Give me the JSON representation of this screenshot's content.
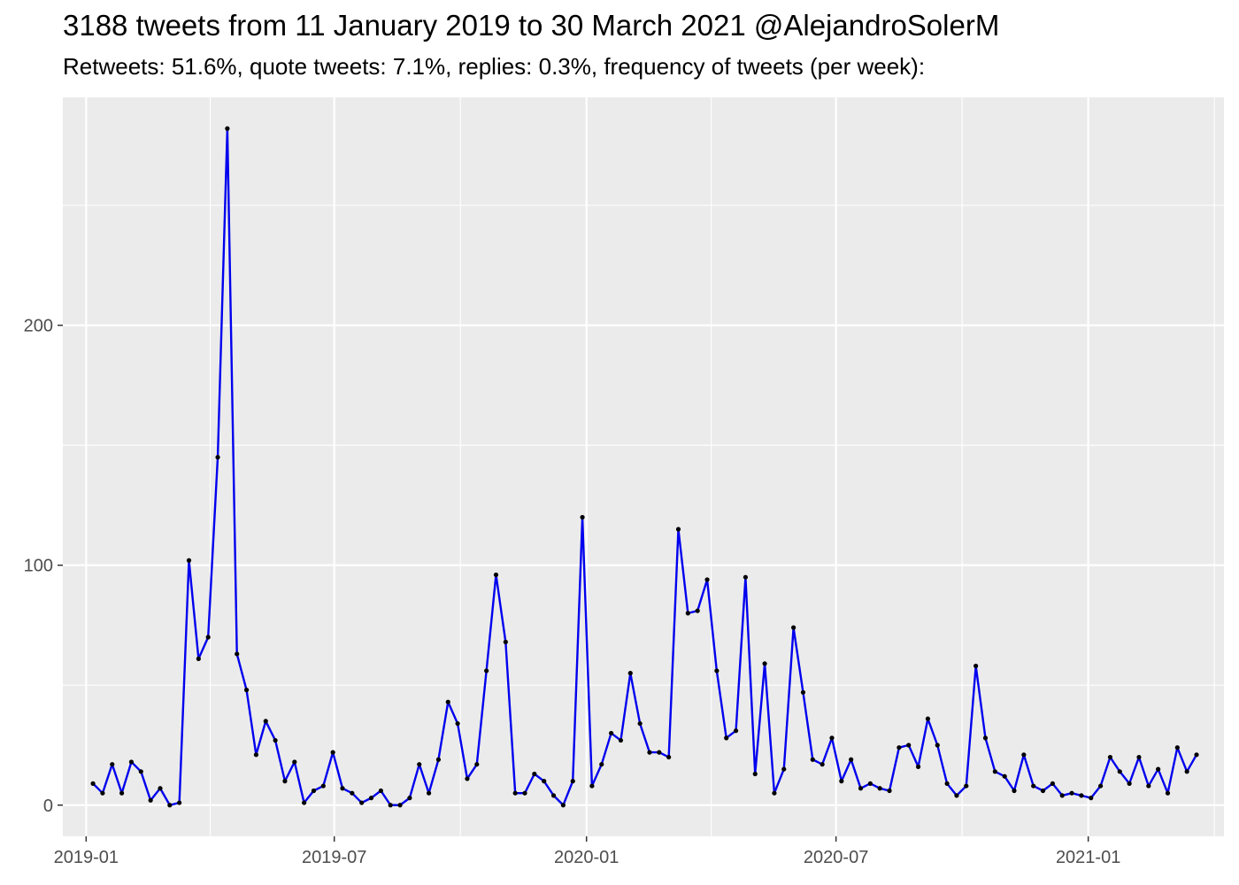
{
  "chart_data": {
    "type": "line",
    "title": "3188 tweets from 11 January 2019 to 30 March 2021 @AlejandroSolerM",
    "subtitle": "Retweets: 51.6%, quote tweets: 7.1%, replies: 0.3%, frequency of tweets (per week):",
    "xlabel": "",
    "ylabel": "",
    "x_start": "2019-01-06",
    "x_step_days": 7,
    "values": [
      9,
      5,
      17,
      5,
      18,
      14,
      2,
      7,
      0,
      1,
      102,
      61,
      70,
      145,
      282,
      63,
      48,
      21,
      35,
      27,
      10,
      18,
      1,
      6,
      8,
      22,
      7,
      5,
      1,
      3,
      6,
      0,
      0,
      3,
      17,
      5,
      19,
      43,
      34,
      11,
      17,
      56,
      96,
      68,
      5,
      5,
      13,
      10,
      4,
      0,
      10,
      120,
      8,
      17,
      30,
      27,
      55,
      34,
      22,
      22,
      20,
      115,
      80,
      81,
      94,
      56,
      28,
      31,
      95,
      13,
      59,
      5,
      15,
      74,
      47,
      19,
      17,
      28,
      10,
      19,
      7,
      9,
      7,
      6,
      24,
      25,
      16,
      36,
      25,
      9,
      4,
      8,
      58,
      28,
      14,
      12,
      6,
      21,
      8,
      6,
      9,
      4,
      5,
      4,
      3,
      8,
      20,
      14,
      9,
      20,
      8,
      15,
      5,
      24,
      14,
      21
    ],
    "x_ticks": [
      "2019-01",
      "2019-07",
      "2020-01",
      "2020-07",
      "2021-01"
    ],
    "y_ticks": [
      0,
      100,
      200
    ],
    "xlim": [
      "2018-12-15",
      "2021-04-10"
    ],
    "ylim": [
      -13,
      295
    ],
    "grid": true,
    "line_color": "#0000ee",
    "point_color": "#000000",
    "panel_background": "#ebebeb"
  }
}
